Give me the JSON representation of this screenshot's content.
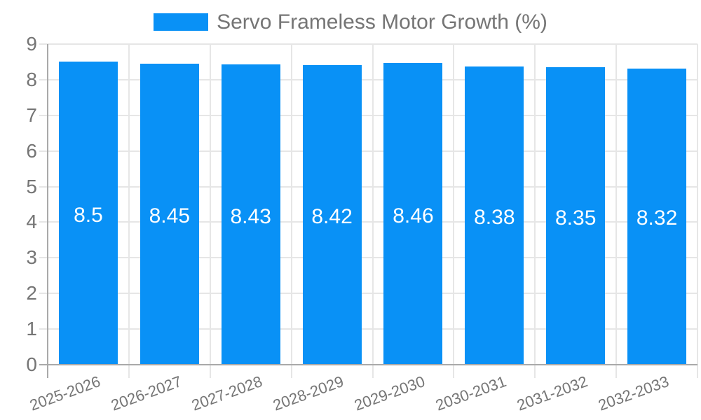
{
  "chart_data": {
    "type": "bar",
    "legend_label": "Servo Frameless Motor Growth (%)",
    "categories": [
      "2025-2026",
      "2026-2027",
      "2027-2028",
      "2028-2029",
      "2029-2030",
      "2030-2031",
      "2031-2032",
      "2032-2033"
    ],
    "values": [
      8.5,
      8.45,
      8.43,
      8.42,
      8.46,
      8.38,
      8.35,
      8.32
    ],
    "value_labels": [
      "8.5",
      "8.45",
      "8.43",
      "8.42",
      "8.46",
      "8.38",
      "8.35",
      "8.32"
    ],
    "title": "",
    "xlabel": "",
    "ylabel": "",
    "ylim": [
      0,
      9
    ],
    "yticks": [
      0,
      1,
      2,
      3,
      4,
      5,
      6,
      7,
      8,
      9
    ],
    "grid": true,
    "legend_position": "top",
    "x_tick_rotation_deg": -20
  },
  "colors": {
    "bar": "#0991f6",
    "grid": "#e6e6e6",
    "axis": "#a9a9a9",
    "tick_text": "#757575",
    "value_text": "#ffffff",
    "background": "#ffffff"
  }
}
